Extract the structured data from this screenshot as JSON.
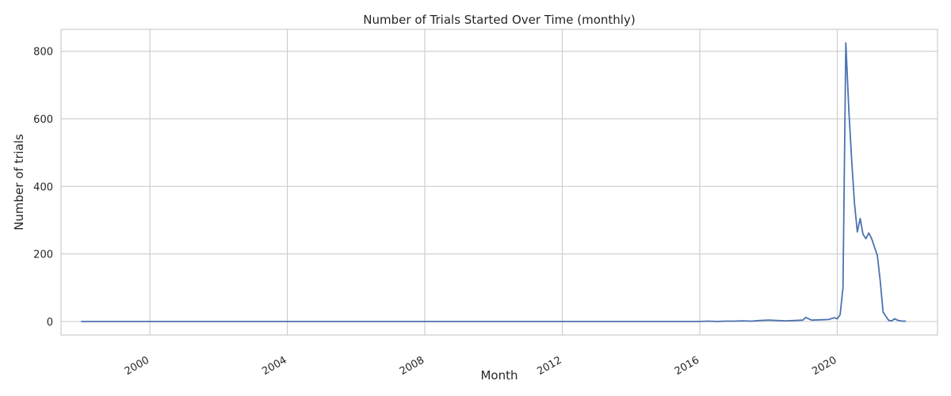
{
  "chart_data": {
    "type": "line",
    "title": "Number of Trials Started Over Time (monthly)",
    "xlabel": "Month",
    "ylabel": "Number of trials",
    "x_ticks": [
      "2000",
      "2004",
      "2008",
      "2012",
      "2016",
      "2020"
    ],
    "y_ticks": [
      0,
      200,
      400,
      600,
      800
    ],
    "xlim": [
      "1997-06",
      "2022-12"
    ],
    "ylim": [
      -40,
      865
    ],
    "grid": true,
    "series": [
      {
        "color": "#4c72b0",
        "x": [
          "1998-01",
          "2016-01",
          "2016-04",
          "2016-07",
          "2016-10",
          "2017-01",
          "2017-04",
          "2017-07",
          "2017-10",
          "2018-01",
          "2018-04",
          "2018-07",
          "2018-10",
          "2019-01",
          "2019-02",
          "2019-04",
          "2019-07",
          "2019-10",
          "2019-12",
          "2020-01",
          "2020-02",
          "2020-03",
          "2020-04",
          "2020-05",
          "2020-06",
          "2020-07",
          "2020-08",
          "2020-09",
          "2020-10",
          "2020-11",
          "2020-12",
          "2021-01",
          "2021-02",
          "2021-03",
          "2021-04",
          "2021-05",
          "2021-06",
          "2021-07",
          "2021-08",
          "2021-09",
          "2021-10",
          "2021-11",
          "2021-12",
          "2022-01"
        ],
        "y": [
          0,
          0,
          1,
          0,
          1,
          1,
          2,
          1,
          3,
          4,
          3,
          2,
          3,
          4,
          12,
          4,
          5,
          6,
          11,
          8,
          20,
          100,
          825,
          630,
          480,
          350,
          265,
          305,
          258,
          245,
          262,
          245,
          220,
          195,
          120,
          28,
          15,
          3,
          2,
          8,
          4,
          2,
          1,
          1
        ]
      }
    ]
  }
}
